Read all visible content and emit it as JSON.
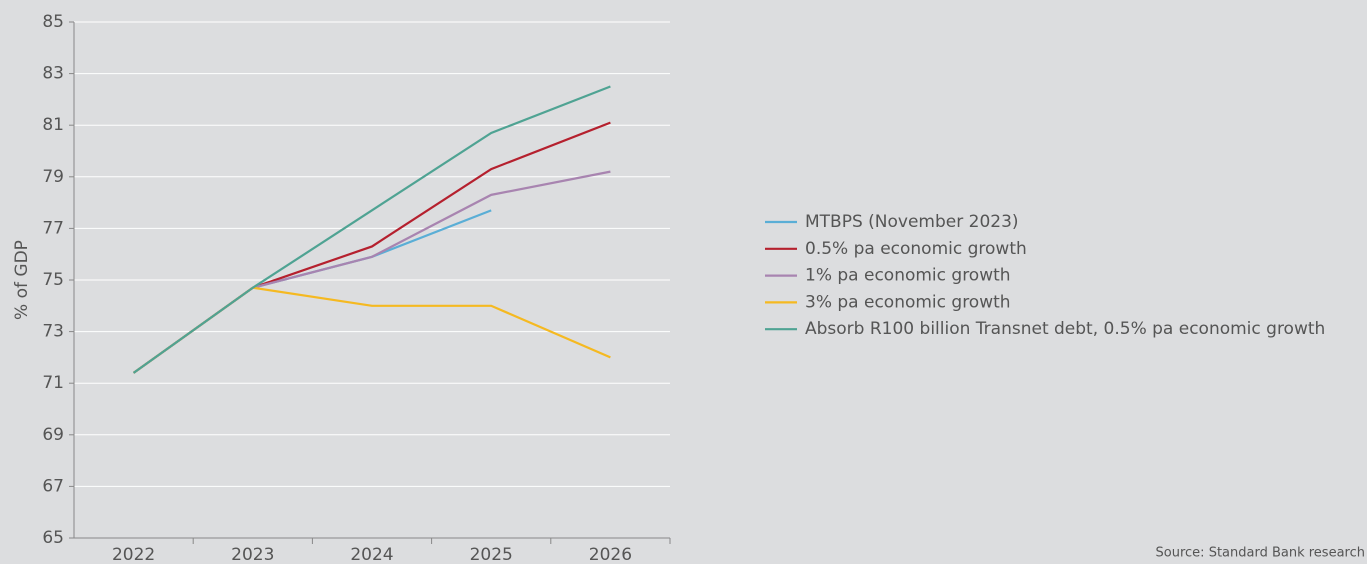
{
  "chart_data": {
    "type": "line",
    "y_label": "% of GDP",
    "source": "Source: Standard Bank research",
    "categories": [
      "2022",
      "2023",
      "2024",
      "2025",
      "2026"
    ],
    "series": [
      {
        "name": "MTBPS (November 2023)",
        "color": "#5aaed6",
        "values": [
          71.4,
          74.7,
          75.9,
          77.7,
          null
        ]
      },
      {
        "name": "0.5% pa economic growth",
        "color": "#b5202e",
        "values": [
          71.4,
          74.7,
          76.3,
          79.3,
          81.1
        ]
      },
      {
        "name": "1% pa economic growth",
        "color": "#a884b0",
        "values": [
          71.4,
          74.7,
          75.9,
          78.3,
          79.2
        ]
      },
      {
        "name": "3% pa economic growth",
        "color": "#f5b921",
        "values": [
          71.4,
          74.7,
          74.0,
          74.0,
          72.0
        ]
      },
      {
        "name": "Absorb R100 billion Transnet debt, 0.5% pa economic growth",
        "color": "#4fa393",
        "values": [
          71.4,
          74.7,
          77.7,
          80.7,
          82.5
        ]
      }
    ],
    "ylim": [
      65,
      85
    ],
    "yticks": [
      65,
      67,
      69,
      71,
      73,
      75,
      77,
      79,
      81,
      83,
      85
    ],
    "grid": true,
    "legend": "right"
  }
}
